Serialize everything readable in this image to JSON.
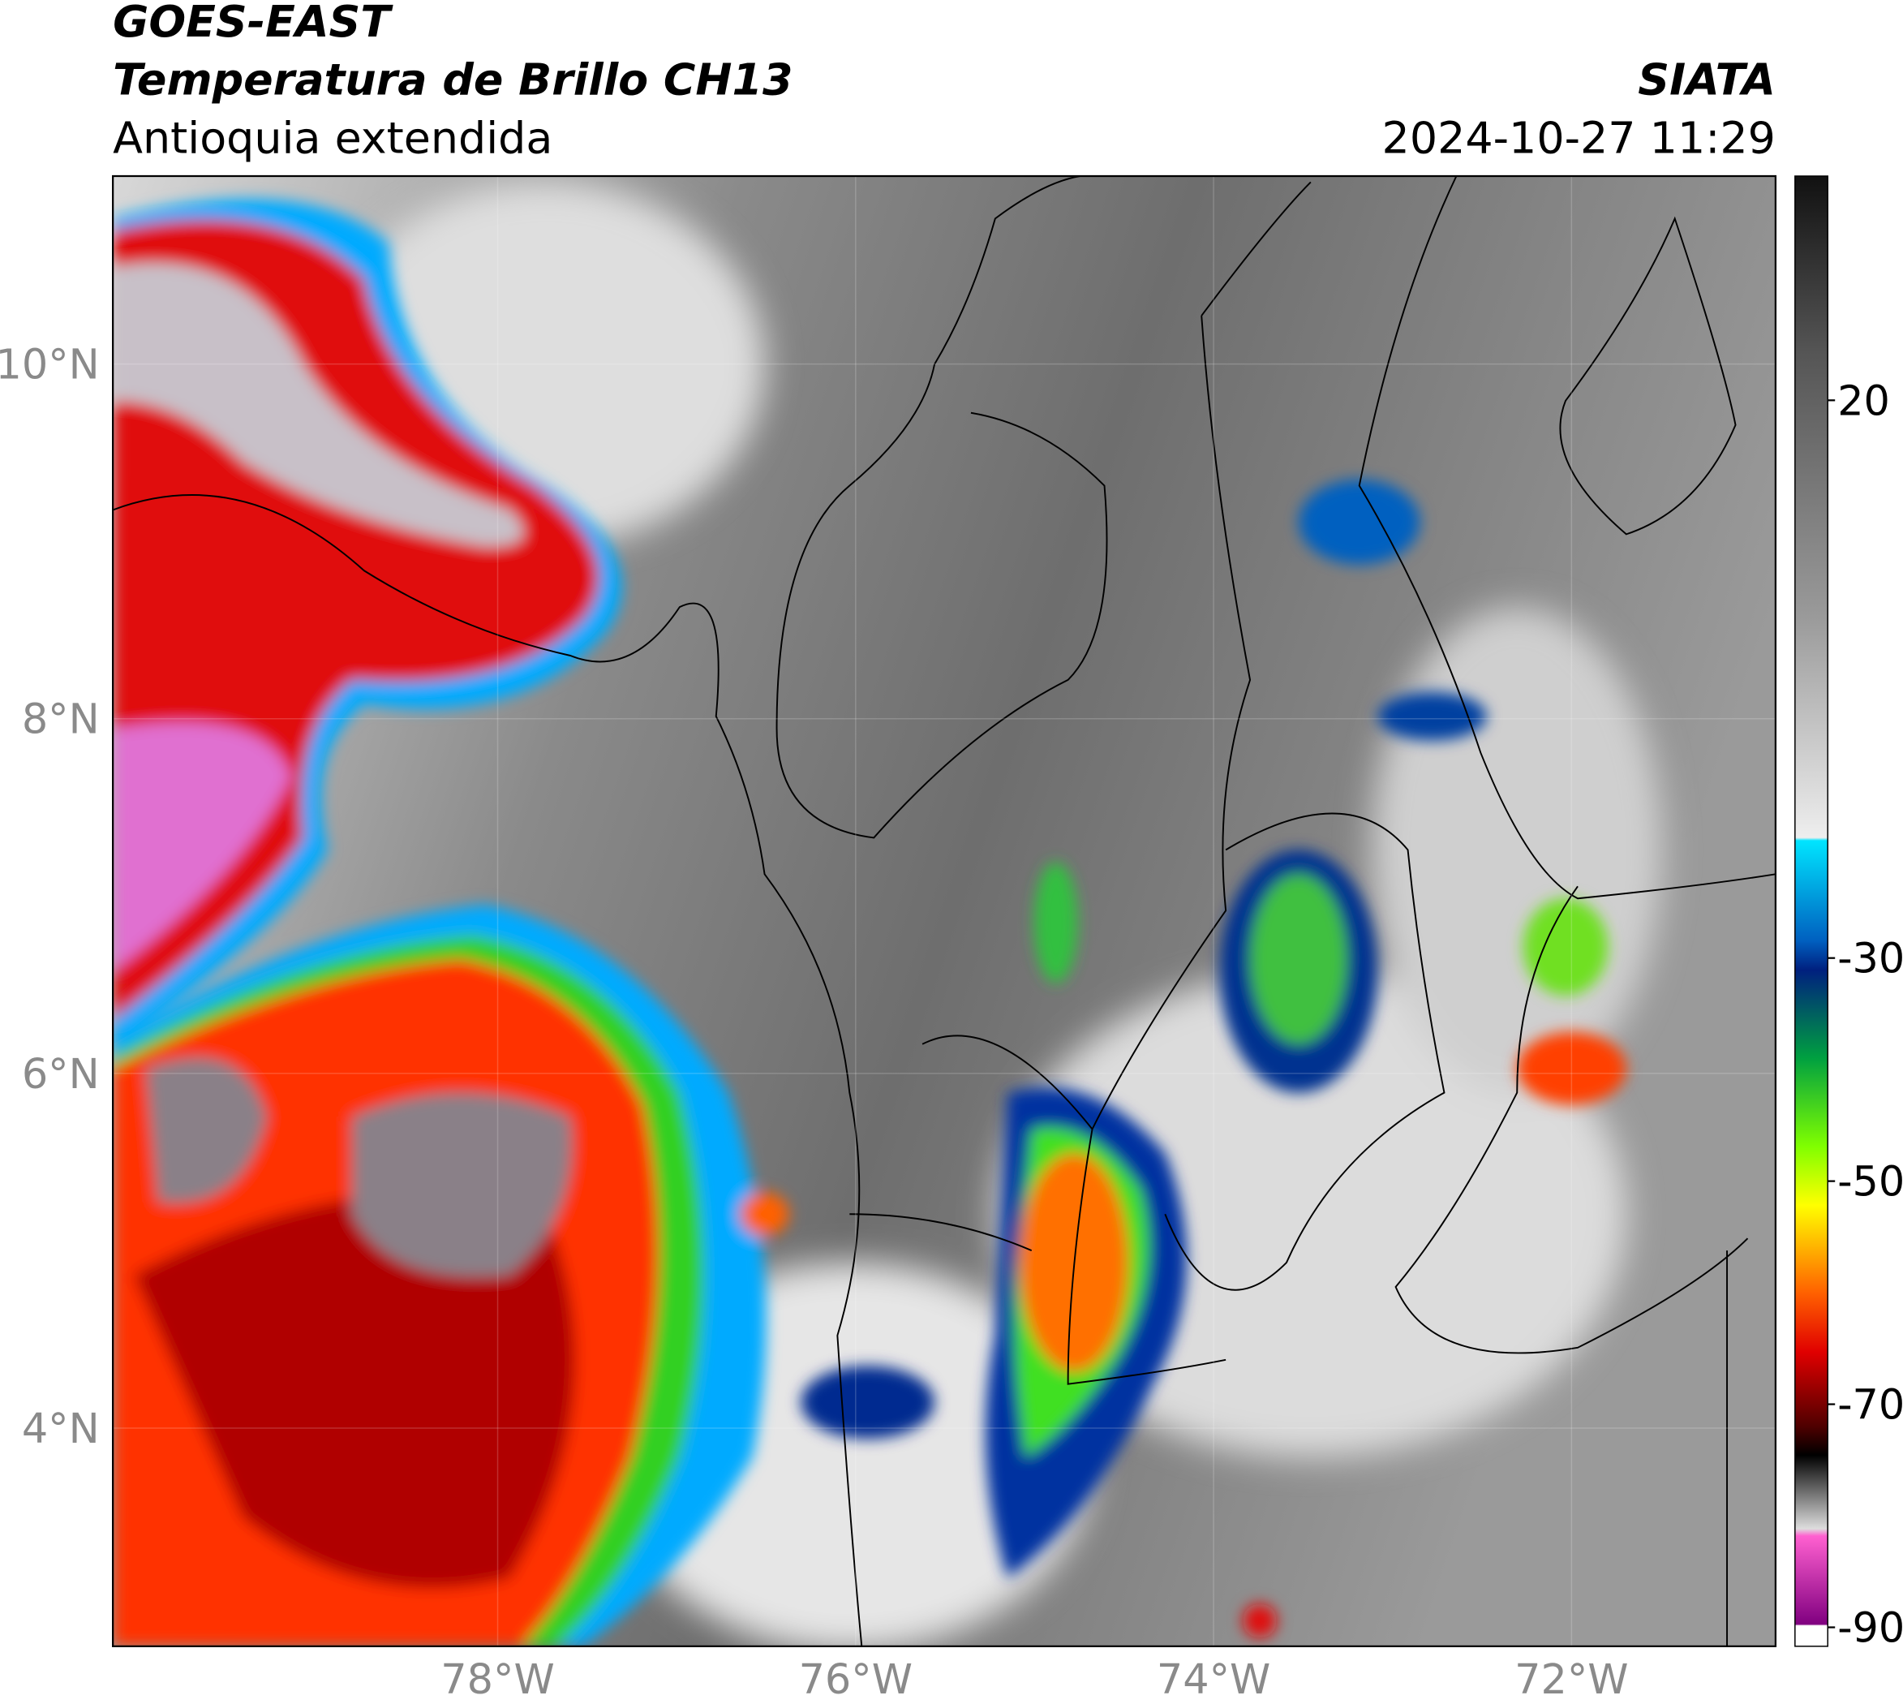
{
  "header": {
    "title": "GOES-EAST",
    "subtitle": "Temperatura de Brillo CH13",
    "region": "Antioquia extendida",
    "source": "SIATA",
    "datetime": "2024-10-27 11:29"
  },
  "map": {
    "xlim": [
      -80.15,
      -70.86
    ],
    "ylim": [
      2.77,
      11.06
    ],
    "xticks": [
      {
        "value": -78,
        "label": "78°W"
      },
      {
        "value": -76,
        "label": "76°W"
      },
      {
        "value": -74,
        "label": "74°W"
      },
      {
        "value": -72,
        "label": "72°W"
      }
    ],
    "yticks": [
      {
        "value": 10,
        "label": "10°N"
      },
      {
        "value": 8,
        "label": "8°N"
      },
      {
        "value": 6,
        "label": "6°N"
      },
      {
        "value": 4,
        "label": "4°N"
      }
    ],
    "grid": true
  },
  "colorbar": {
    "lim": [
      -91.7,
      40.1
    ],
    "ticks": [
      20,
      -30,
      -50,
      -70,
      -90
    ]
  }
}
